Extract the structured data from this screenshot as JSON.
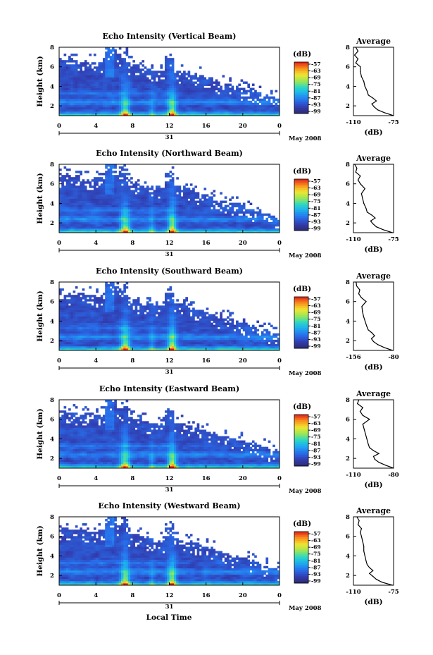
{
  "figure": {
    "xaxis_label": "Local Time",
    "date_label": "May 2008"
  },
  "chart_data": [
    {
      "type": "heatmap",
      "title": "Echo Intensity (Vertical Beam)",
      "ylabel": "Height (km)",
      "xlabel": "Local Time",
      "x_ticks": [
        "0",
        "4",
        "8",
        "12",
        "16",
        "20",
        "0"
      ],
      "day_label": "31",
      "date_label": "May 2008",
      "xlim": [
        0,
        24
      ],
      "ylim": [
        1,
        8
      ],
      "y_ticks": [
        "2",
        "4",
        "6",
        "8"
      ],
      "colorbar": {
        "label": "(dB)",
        "ticks": [
          "-57",
          "-63",
          "-69",
          "-75",
          "-81",
          "-87",
          "-93",
          "-99"
        ],
        "range": [
          -99,
          -57
        ]
      },
      "shape_variant": 0,
      "average_profile": {
        "title": "Average",
        "xlabel": "(dB)",
        "x_ticks": [
          "-110",
          "-75"
        ],
        "xlim": [
          -110,
          -75
        ],
        "ylim": [
          1,
          8
        ],
        "y_ticks": [
          "2",
          "4",
          "6",
          "8"
        ],
        "values": [
          {
            "height": 1.0,
            "db": -75
          },
          {
            "height": 1.3,
            "db": -83
          },
          {
            "height": 1.6,
            "db": -89
          },
          {
            "height": 1.9,
            "db": -92
          },
          {
            "height": 2.2,
            "db": -94
          },
          {
            "height": 2.5,
            "db": -90
          },
          {
            "height": 2.8,
            "db": -93
          },
          {
            "height": 3.1,
            "db": -97
          },
          {
            "height": 3.5,
            "db": -98
          },
          {
            "height": 4.0,
            "db": -100
          },
          {
            "height": 4.5,
            "db": -101
          },
          {
            "height": 5.0,
            "db": -103
          },
          {
            "height": 5.5,
            "db": -104
          },
          {
            "height": 6.0,
            "db": -104
          },
          {
            "height": 6.4,
            "db": -108
          },
          {
            "height": 6.8,
            "db": -106
          },
          {
            "height": 7.2,
            "db": -109
          },
          {
            "height": 7.6,
            "db": -106
          },
          {
            "height": 8.0,
            "db": -108
          }
        ]
      }
    },
    {
      "type": "heatmap",
      "title": "Echo Intensity (Northward Beam)",
      "ylabel": "Height (km)",
      "xlabel": "Local Time",
      "x_ticks": [
        "0",
        "4",
        "8",
        "12",
        "16",
        "20",
        "0"
      ],
      "day_label": "31",
      "date_label": "May 2008",
      "xlim": [
        0,
        24
      ],
      "ylim": [
        1,
        8
      ],
      "y_ticks": [
        "2",
        "4",
        "6",
        "8"
      ],
      "colorbar": {
        "label": "(dB)",
        "ticks": [
          "-57",
          "-63",
          "-69",
          "-75",
          "-81",
          "-87",
          "-93",
          "-99"
        ],
        "range": [
          -99,
          -57
        ]
      },
      "shape_variant": 1,
      "average_profile": {
        "title": "Average",
        "xlabel": "(dB)",
        "x_ticks": [
          "-110",
          "-75"
        ],
        "xlim": [
          -110,
          -75
        ],
        "ylim": [
          1,
          8
        ],
        "y_ticks": [
          "2",
          "4",
          "6",
          "8"
        ],
        "values": [
          {
            "height": 1.0,
            "db": -76
          },
          {
            "height": 1.3,
            "db": -84
          },
          {
            "height": 1.6,
            "db": -90
          },
          {
            "height": 1.9,
            "db": -93
          },
          {
            "height": 2.2,
            "db": -95
          },
          {
            "height": 2.5,
            "db": -91
          },
          {
            "height": 2.8,
            "db": -94
          },
          {
            "height": 3.1,
            "db": -98
          },
          {
            "height": 3.5,
            "db": -99
          },
          {
            "height": 4.0,
            "db": -101
          },
          {
            "height": 4.5,
            "db": -102
          },
          {
            "height": 5.0,
            "db": -103
          },
          {
            "height": 5.5,
            "db": -100
          },
          {
            "height": 6.0,
            "db": -104
          },
          {
            "height": 6.4,
            "db": -106
          },
          {
            "height": 6.8,
            "db": -104
          },
          {
            "height": 7.2,
            "db": -108
          },
          {
            "height": 7.6,
            "db": -107
          },
          {
            "height": 8.0,
            "db": -109
          }
        ]
      }
    },
    {
      "type": "heatmap",
      "title": "Echo Intensity (Southward Beam)",
      "ylabel": "Height (km)",
      "xlabel": "Local Time",
      "x_ticks": [
        "0",
        "4",
        "8",
        "12",
        "16",
        "20",
        "0"
      ],
      "day_label": "31",
      "date_label": "May 2008",
      "xlim": [
        0,
        24
      ],
      "ylim": [
        1,
        8
      ],
      "y_ticks": [
        "2",
        "4",
        "6",
        "8"
      ],
      "colorbar": {
        "label": "(dB)",
        "ticks": [
          "-57",
          "-63",
          "-69",
          "-75",
          "-81",
          "-87",
          "-93",
          "-99"
        ],
        "range": [
          -99,
          -57
        ]
      },
      "shape_variant": 2,
      "average_profile": {
        "title": "Average",
        "xlabel": "(dB)",
        "x_ticks": [
          "-156",
          "-80"
        ],
        "xlim": [
          -156,
          -80
        ],
        "ylim": [
          1,
          8
        ],
        "y_ticks": [
          "2",
          "4",
          "6",
          "8"
        ],
        "values": [
          {
            "height": 1.0,
            "db": -82
          },
          {
            "height": 1.3,
            "db": -98
          },
          {
            "height": 1.6,
            "db": -110
          },
          {
            "height": 1.9,
            "db": -118
          },
          {
            "height": 2.2,
            "db": -122
          },
          {
            "height": 2.5,
            "db": -116
          },
          {
            "height": 2.8,
            "db": -121
          },
          {
            "height": 3.1,
            "db": -128
          },
          {
            "height": 3.5,
            "db": -131
          },
          {
            "height": 4.0,
            "db": -134
          },
          {
            "height": 4.5,
            "db": -137
          },
          {
            "height": 5.0,
            "db": -139
          },
          {
            "height": 5.5,
            "db": -140
          },
          {
            "height": 6.0,
            "db": -132
          },
          {
            "height": 6.4,
            "db": -141
          },
          {
            "height": 6.8,
            "db": -146
          },
          {
            "height": 7.2,
            "db": -144
          },
          {
            "height": 7.6,
            "db": -150
          },
          {
            "height": 8.0,
            "db": -151
          }
        ]
      }
    },
    {
      "type": "heatmap",
      "title": "Echo Intensity (Eastward Beam)",
      "ylabel": "Height (km)",
      "xlabel": "Local Time",
      "x_ticks": [
        "0",
        "4",
        "8",
        "12",
        "16",
        "20",
        "0"
      ],
      "day_label": "31",
      "date_label": "May 2008",
      "xlim": [
        0,
        24
      ],
      "ylim": [
        1,
        8
      ],
      "y_ticks": [
        "2",
        "4",
        "6",
        "8"
      ],
      "colorbar": {
        "label": "(dB)",
        "ticks": [
          "-57",
          "-63",
          "-69",
          "-75",
          "-81",
          "-87",
          "-93",
          "-99"
        ],
        "range": [
          -99,
          -57
        ]
      },
      "shape_variant": 3,
      "average_profile": {
        "title": "Average",
        "xlabel": "(dB)",
        "x_ticks": [
          "-110",
          "-80"
        ],
        "xlim": [
          -110,
          -80
        ],
        "ylim": [
          1,
          8
        ],
        "y_ticks": [
          "2",
          "4",
          "6",
          "8"
        ],
        "values": [
          {
            "height": 1.0,
            "db": -80
          },
          {
            "height": 1.3,
            "db": -86
          },
          {
            "height": 1.6,
            "db": -91
          },
          {
            "height": 1.9,
            "db": -94
          },
          {
            "height": 2.2,
            "db": -95
          },
          {
            "height": 2.5,
            "db": -91
          },
          {
            "height": 2.8,
            "db": -95
          },
          {
            "height": 3.1,
            "db": -98
          },
          {
            "height": 3.5,
            "db": -99
          },
          {
            "height": 4.0,
            "db": -100
          },
          {
            "height": 4.5,
            "db": -101
          },
          {
            "height": 5.0,
            "db": -102
          },
          {
            "height": 5.5,
            "db": -103
          },
          {
            "height": 6.0,
            "db": -98
          },
          {
            "height": 6.4,
            "db": -103
          },
          {
            "height": 6.8,
            "db": -105
          },
          {
            "height": 7.2,
            "db": -103
          },
          {
            "height": 7.6,
            "db": -107
          },
          {
            "height": 8.0,
            "db": -106
          }
        ]
      }
    },
    {
      "type": "heatmap",
      "title": "Echo Intensity (Westward Beam)",
      "ylabel": "Height (km)",
      "xlabel": "Local Time",
      "x_ticks": [
        "0",
        "4",
        "8",
        "12",
        "16",
        "20",
        "0"
      ],
      "day_label": "31",
      "date_label": "May 2008",
      "xlim": [
        0,
        24
      ],
      "ylim": [
        1,
        8
      ],
      "y_ticks": [
        "2",
        "4",
        "6",
        "8"
      ],
      "colorbar": {
        "label": "(dB)",
        "ticks": [
          "-57",
          "-63",
          "-69",
          "-75",
          "-81",
          "-87",
          "-93",
          "-99"
        ],
        "range": [
          -99,
          -57
        ]
      },
      "shape_variant": 4,
      "average_profile": {
        "title": "Average",
        "xlabel": "(dB)",
        "x_ticks": [
          "-110",
          "-75"
        ],
        "xlim": [
          -110,
          -75
        ],
        "ylim": [
          1,
          8
        ],
        "y_ticks": [
          "2",
          "4",
          "6",
          "8"
        ],
        "values": [
          {
            "height": 1.0,
            "db": -76
          },
          {
            "height": 1.3,
            "db": -85
          },
          {
            "height": 1.6,
            "db": -90
          },
          {
            "height": 1.9,
            "db": -93
          },
          {
            "height": 2.2,
            "db": -96
          },
          {
            "height": 2.5,
            "db": -93
          },
          {
            "height": 2.8,
            "db": -96
          },
          {
            "height": 3.1,
            "db": -98
          },
          {
            "height": 3.5,
            "db": -99
          },
          {
            "height": 4.0,
            "db": -100
          },
          {
            "height": 4.5,
            "db": -101
          },
          {
            "height": 5.0,
            "db": -101
          },
          {
            "height": 5.5,
            "db": -102
          },
          {
            "height": 6.0,
            "db": -103
          },
          {
            "height": 6.4,
            "db": -104
          },
          {
            "height": 6.8,
            "db": -103
          },
          {
            "height": 7.2,
            "db": -106
          },
          {
            "height": 7.6,
            "db": -105
          },
          {
            "height": 8.0,
            "db": -107
          }
        ]
      }
    }
  ]
}
